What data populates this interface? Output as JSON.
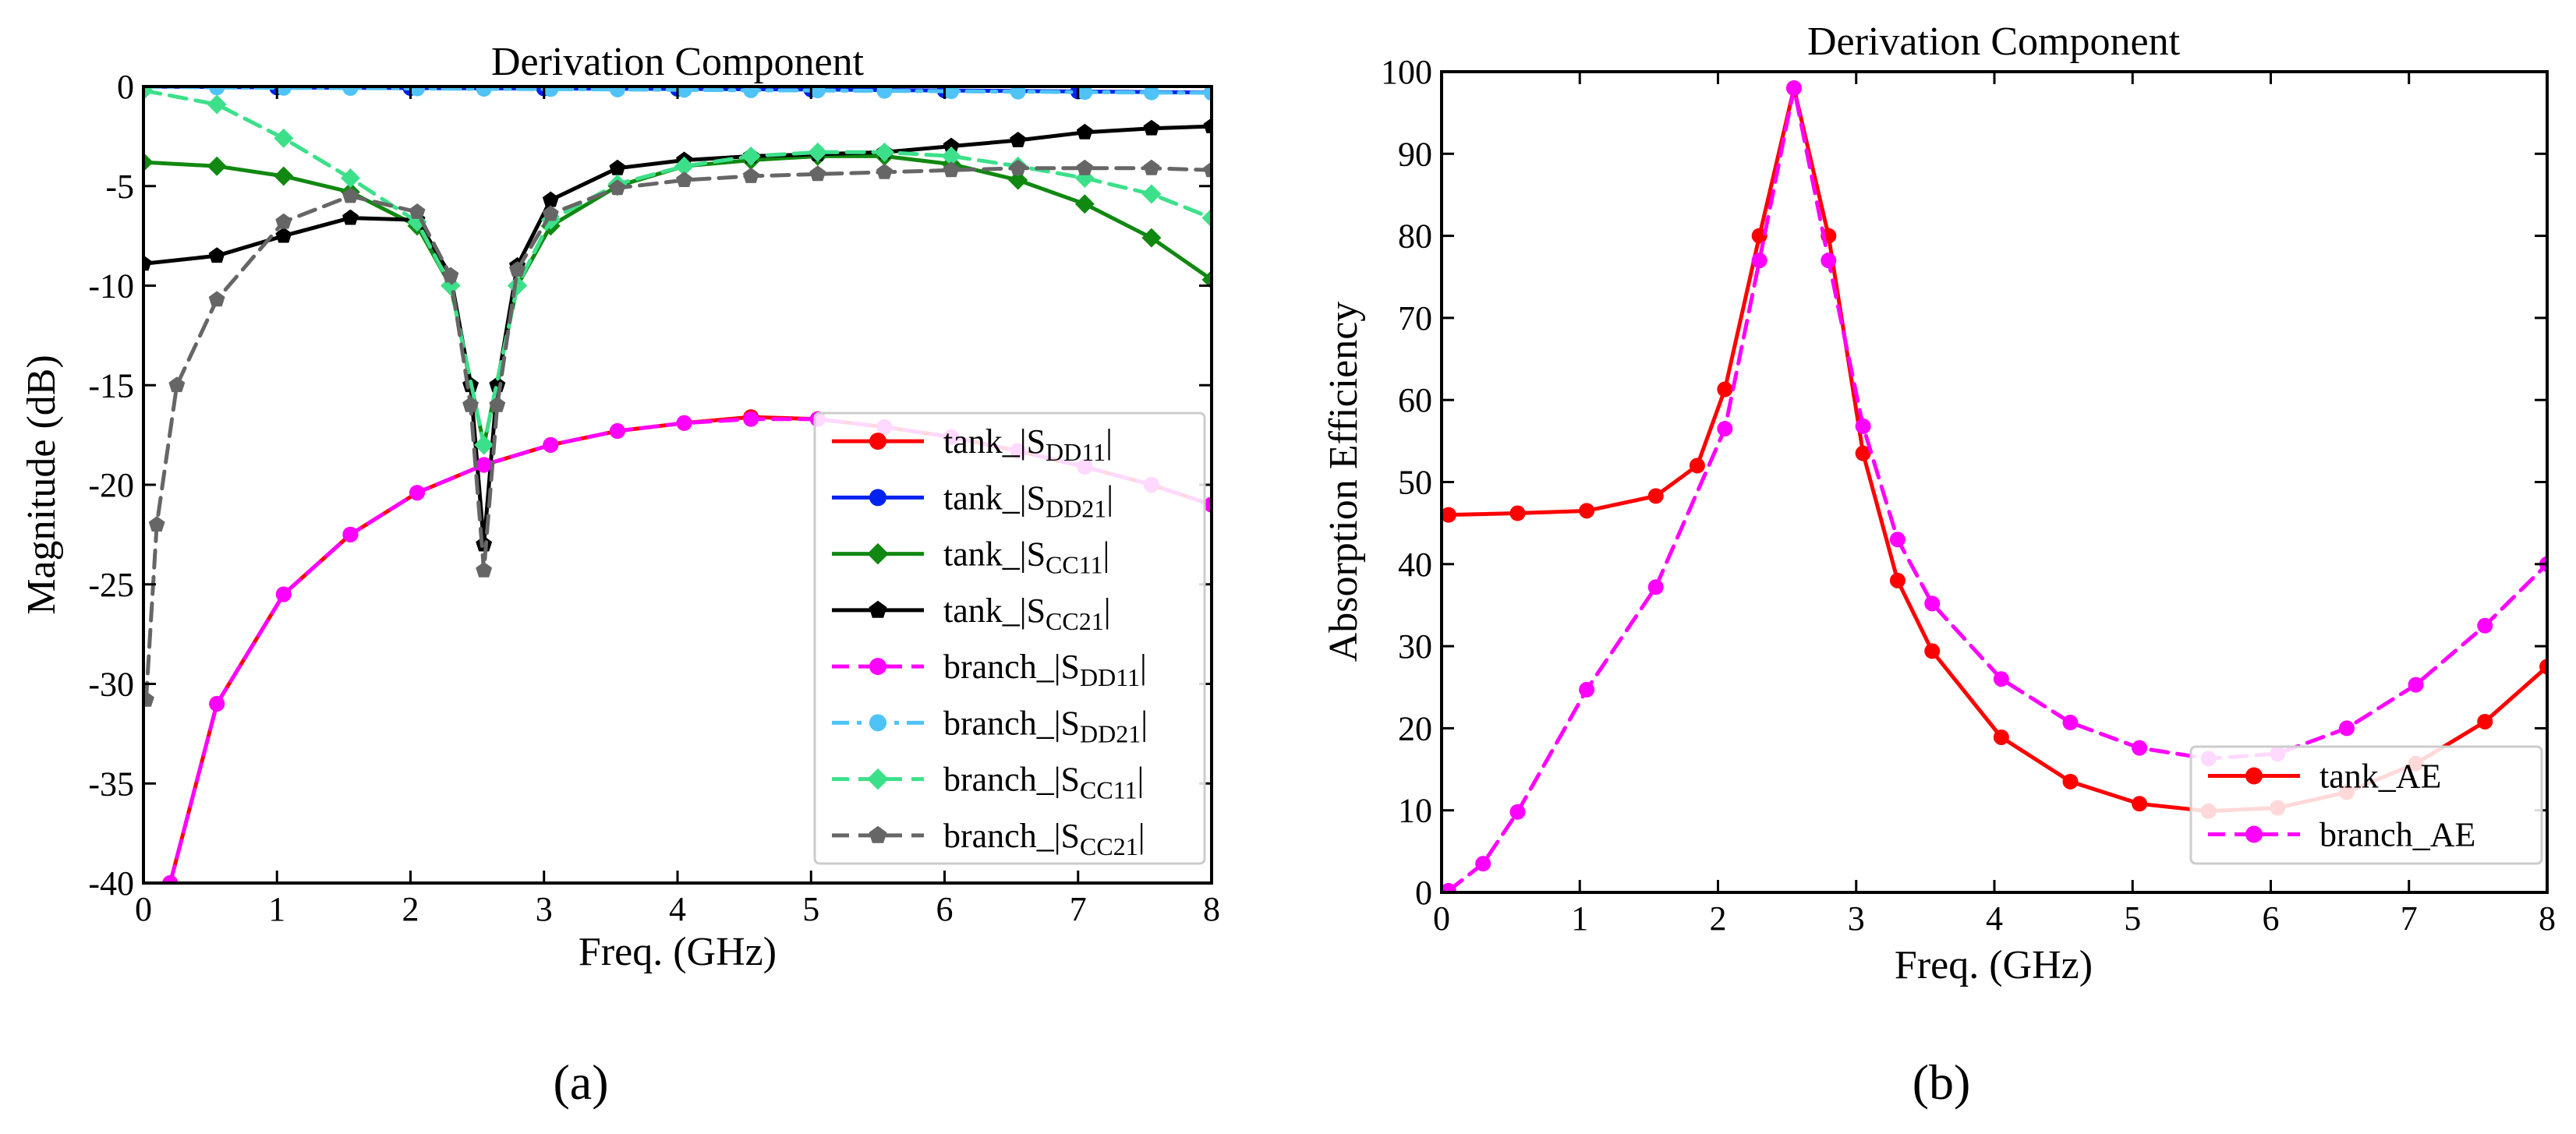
{
  "chart_data": [
    {
      "id": "a",
      "type": "line",
      "panel_label": "(a)",
      "title": "Derivation Component",
      "xlabel": "Freq. (GHz)",
      "ylabel": "Magnitude (dB)",
      "xlim": [
        0,
        8
      ],
      "ylim": [
        -40,
        0
      ],
      "xticks": [
        0,
        1,
        2,
        3,
        4,
        5,
        6,
        7,
        8
      ],
      "yticks": [
        0,
        -5,
        -10,
        -15,
        -20,
        -25,
        -30,
        -35,
        -40
      ],
      "legend_position": "lower-right",
      "series": [
        {
          "name": "tank_|S",
          "sub": "DD11",
          "suffix": "|",
          "color": "#ff0000",
          "dash": "solid",
          "marker": "circle",
          "x": [
            0.2,
            0.55,
            1.05,
            1.55,
            2.05,
            2.55,
            3.05,
            3.55,
            4.05,
            4.55,
            5.05,
            5.55,
            6.05,
            6.55,
            7.05,
            7.55,
            8.0
          ],
          "y": [
            -40,
            -31,
            -25.5,
            -22.5,
            -20.4,
            -19.0,
            -18.0,
            -17.3,
            -16.9,
            -16.6,
            -16.7,
            -17.1,
            -17.6,
            -18.3,
            -19.1,
            -20.0,
            -21.0
          ]
        },
        {
          "name": "tank_|S",
          "sub": "DD21",
          "suffix": "|",
          "color": "#0022ee",
          "dash": "solid",
          "marker": "circle",
          "x": [
            0,
            1,
            2,
            3,
            4,
            5,
            6,
            7,
            8
          ],
          "y": [
            0.0,
            -0.05,
            -0.08,
            -0.1,
            -0.12,
            -0.15,
            -0.2,
            -0.25,
            -0.3
          ]
        },
        {
          "name": "tank_|S",
          "sub": "CC11",
          "suffix": "|",
          "color": "#118811",
          "dash": "solid",
          "marker": "diamond",
          "x": [
            0,
            0.55,
            1.05,
            1.55,
            2.05,
            2.3,
            2.55,
            2.8,
            3.05,
            3.55,
            4.05,
            4.55,
            5.05,
            5.55,
            6.05,
            6.55,
            7.05,
            7.55,
            8.0
          ],
          "y": [
            -3.8,
            -4.0,
            -4.5,
            -5.3,
            -7.0,
            -10.0,
            -18.0,
            -10.0,
            -7.0,
            -5.0,
            -4.0,
            -3.7,
            -3.5,
            -3.5,
            -3.9,
            -4.7,
            -5.9,
            -7.6,
            -9.7
          ]
        },
        {
          "name": "tank_|S",
          "sub": "CC21",
          "suffix": "|",
          "color": "#000000",
          "dash": "solid",
          "marker": "pentagon",
          "x": [
            0,
            0.55,
            1.05,
            1.55,
            2.05,
            2.3,
            2.45,
            2.55,
            2.65,
            2.8,
            3.05,
            3.55,
            4.05,
            4.55,
            5.05,
            5.55,
            6.05,
            6.55,
            7.05,
            7.55,
            8.0
          ],
          "y": [
            -8.9,
            -8.5,
            -7.5,
            -6.6,
            -6.7,
            -9.5,
            -15.0,
            -23.0,
            -15.0,
            -9.0,
            -5.7,
            -4.1,
            -3.7,
            -3.5,
            -3.4,
            -3.3,
            -3.0,
            -2.7,
            -2.3,
            -2.1,
            -2.0
          ]
        },
        {
          "name": "branch_|S",
          "sub": "DD11",
          "suffix": "|",
          "color": "#ff00ff",
          "dash": "dashed",
          "marker": "circle",
          "x": [
            0.2,
            0.55,
            1.05,
            1.55,
            2.05,
            2.55,
            3.05,
            3.55,
            4.05,
            4.55,
            5.05,
            5.55,
            6.05,
            6.55,
            7.05,
            7.55,
            8.0
          ],
          "y": [
            -40,
            -31,
            -25.5,
            -22.5,
            -20.4,
            -19.0,
            -18.0,
            -17.3,
            -16.9,
            -16.7,
            -16.7,
            -17.1,
            -17.6,
            -18.3,
            -19.1,
            -20.0,
            -21.0
          ]
        },
        {
          "name": "branch_|S",
          "sub": "DD21",
          "suffix": "|",
          "color": "#4fc3f7",
          "dash": "dashdot",
          "marker": "circle",
          "x": [
            0,
            0.55,
            1.05,
            1.55,
            2.05,
            2.55,
            3.05,
            3.55,
            4.05,
            4.55,
            5.05,
            5.55,
            6.05,
            6.55,
            7.05,
            7.55,
            8.0
          ],
          "y": [
            0.0,
            -0.05,
            -0.07,
            -0.08,
            -0.1,
            -0.12,
            -0.13,
            -0.15,
            -0.17,
            -0.19,
            -0.2,
            -0.22,
            -0.24,
            -0.26,
            -0.28,
            -0.3,
            -0.32
          ]
        },
        {
          "name": "branch_|S",
          "sub": "CC11",
          "suffix": "|",
          "color": "#3de08a",
          "dash": "dashed",
          "marker": "diamond",
          "x": [
            0,
            0.55,
            1.05,
            1.55,
            2.05,
            2.3,
            2.55,
            2.8,
            3.05,
            3.55,
            4.05,
            4.55,
            5.05,
            5.55,
            6.05,
            6.55,
            7.05,
            7.55,
            8.0
          ],
          "y": [
            -0.2,
            -0.9,
            -2.6,
            -4.6,
            -6.8,
            -10.0,
            -18.0,
            -10.0,
            -6.7,
            -4.9,
            -4.0,
            -3.5,
            -3.3,
            -3.3,
            -3.5,
            -4.0,
            -4.6,
            -5.4,
            -6.6
          ]
        },
        {
          "name": "branch_|S",
          "sub": "CC21",
          "suffix": "|",
          "color": "#666666",
          "dash": "dashed",
          "marker": "pentagon",
          "x": [
            0.02,
            0.1,
            0.25,
            0.55,
            1.05,
            1.55,
            2.05,
            2.3,
            2.45,
            2.55,
            2.65,
            2.8,
            3.05,
            3.55,
            4.05,
            4.55,
            5.05,
            5.55,
            6.05,
            6.55,
            7.05,
            7.55,
            8.0
          ],
          "y": [
            -30.8,
            -22.0,
            -15.0,
            -10.7,
            -6.8,
            -5.5,
            -6.3,
            -9.5,
            -16.0,
            -24.3,
            -16.0,
            -9.2,
            -6.4,
            -5.1,
            -4.7,
            -4.5,
            -4.4,
            -4.3,
            -4.2,
            -4.1,
            -4.1,
            -4.1,
            -4.2
          ]
        }
      ]
    },
    {
      "id": "b",
      "type": "line",
      "panel_label": "(b)",
      "title": "Derivation Component",
      "xlabel": "Freq. (GHz)",
      "ylabel": "Absorption Efficiency",
      "xlim": [
        0,
        8
      ],
      "ylim": [
        0,
        100
      ],
      "xticks": [
        0,
        1,
        2,
        3,
        4,
        5,
        6,
        7,
        8
      ],
      "yticks": [
        0,
        10,
        20,
        30,
        40,
        50,
        60,
        70,
        80,
        90,
        100
      ],
      "legend_position": "lower-right",
      "series": [
        {
          "name": "tank_AE",
          "color": "#ff0000",
          "dash": "solid",
          "marker": "circle",
          "x": [
            0.05,
            0.55,
            1.05,
            1.55,
            1.85,
            2.05,
            2.3,
            2.55,
            2.8,
            3.05,
            3.3,
            3.55,
            4.05,
            4.55,
            5.05,
            5.55,
            6.05,
            6.55,
            7.05,
            7.55,
            8.0
          ],
          "y": [
            46.0,
            46.2,
            46.5,
            48.3,
            52.0,
            61.3,
            80.0,
            98.0,
            80.0,
            53.5,
            38.0,
            29.4,
            18.9,
            13.5,
            10.8,
            9.9,
            10.3,
            12.2,
            15.7,
            20.8,
            27.5
          ]
        },
        {
          "name": "branch_AE",
          "color": "#ff00ff",
          "dash": "dashed",
          "marker": "circle",
          "x": [
            0.05,
            0.3,
            0.55,
            1.05,
            1.55,
            2.05,
            2.3,
            2.55,
            2.8,
            3.05,
            3.3,
            3.55,
            4.05,
            4.55,
            5.05,
            5.55,
            6.05,
            6.55,
            7.05,
            7.55,
            8.0
          ],
          "y": [
            0.2,
            3.5,
            9.8,
            24.7,
            37.2,
            56.5,
            77.0,
            98.0,
            77.0,
            56.8,
            43.0,
            35.2,
            26.0,
            20.7,
            17.6,
            16.3,
            16.9,
            20.0,
            25.3,
            32.5,
            40.0
          ]
        }
      ]
    }
  ]
}
